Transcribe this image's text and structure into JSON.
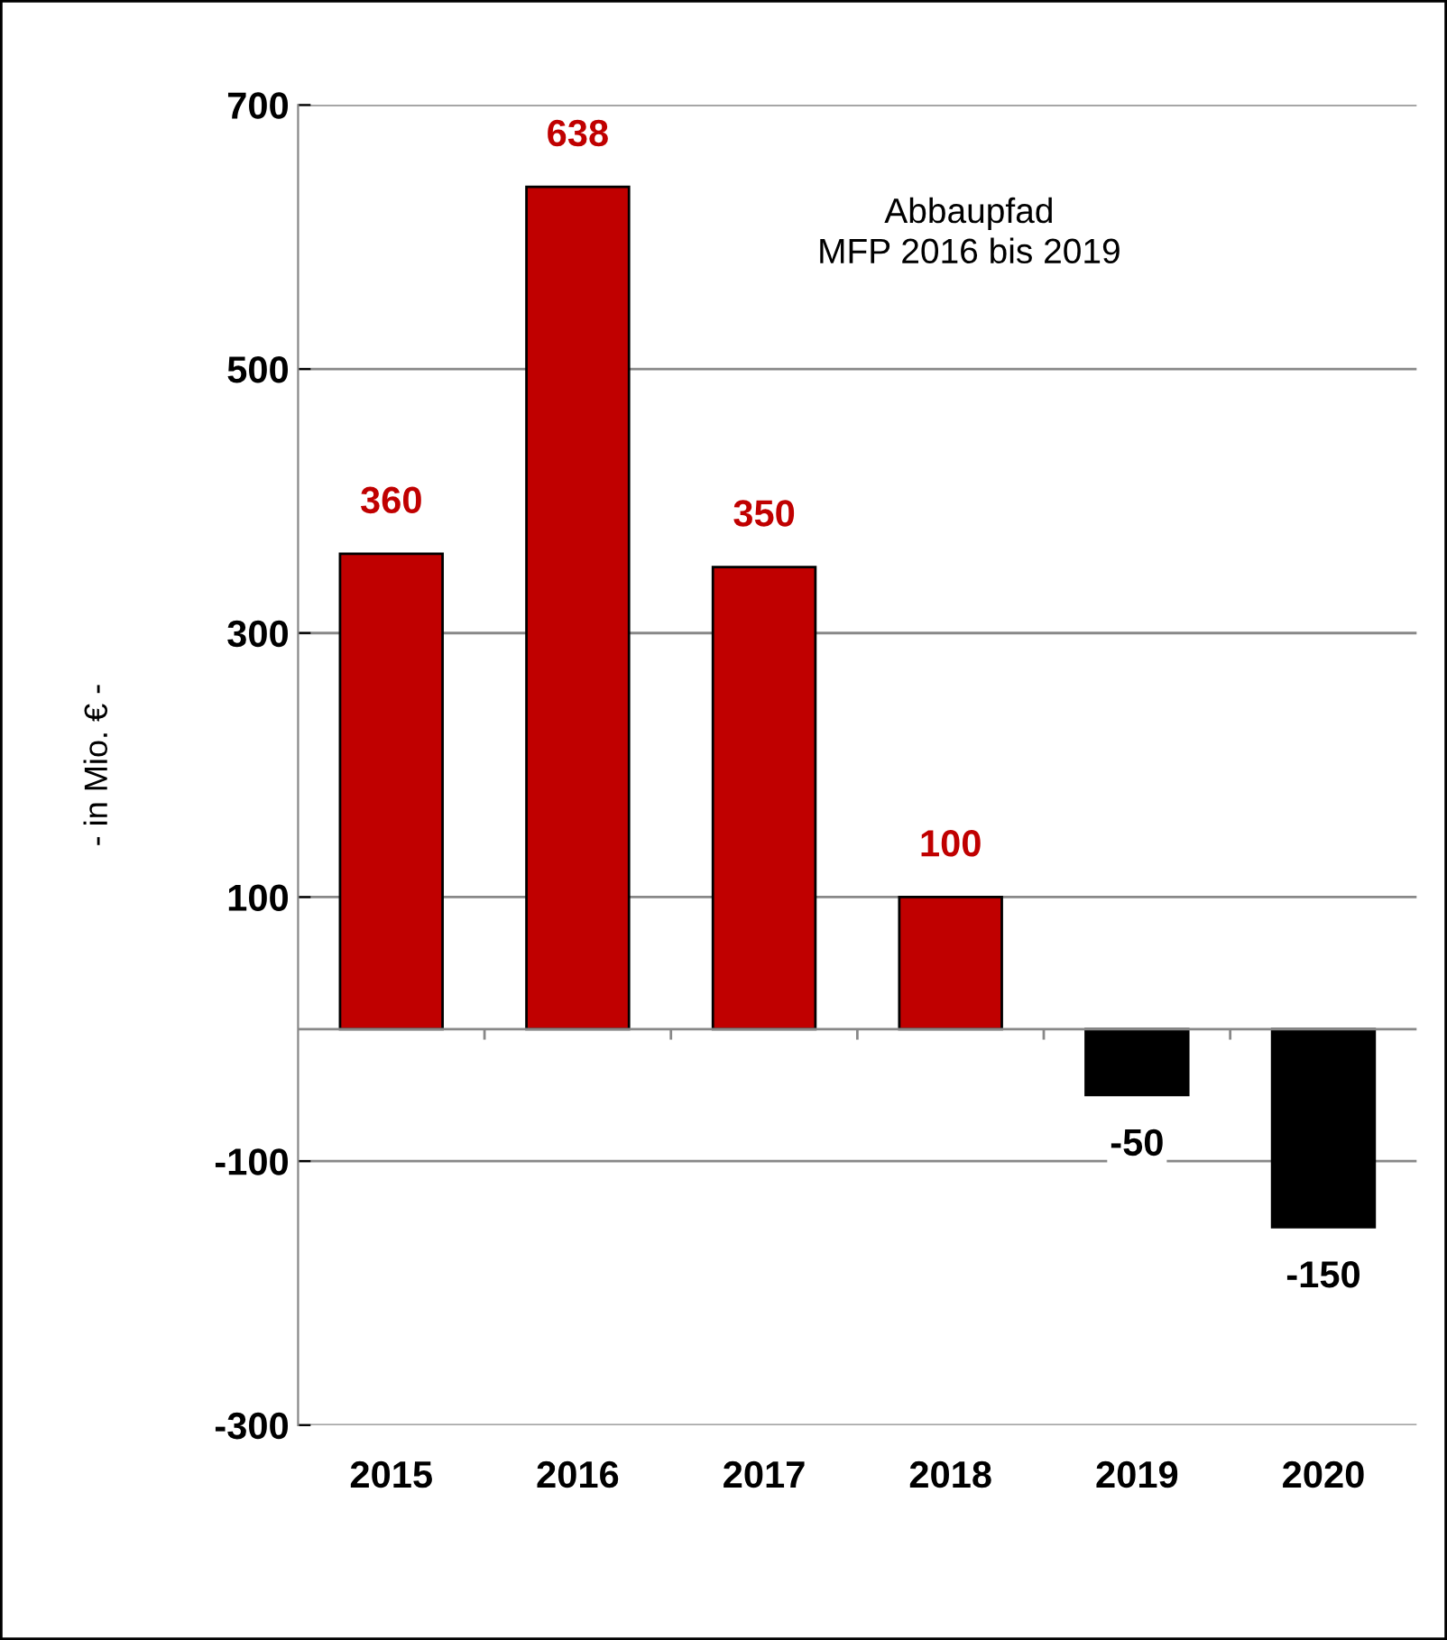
{
  "chart_data": {
    "type": "bar",
    "ylabel": "- in Mio. € -",
    "categories": [
      "2015",
      "2016",
      "2017",
      "2018",
      "2019",
      "2020"
    ],
    "values": [
      360,
      638,
      350,
      100,
      -50,
      -150
    ],
    "colors": [
      "#c00000",
      "#c00000",
      "#c00000",
      "#c00000",
      "#000000",
      "#000000"
    ],
    "data_labels": true,
    "ylim": [
      -300,
      700
    ],
    "yticks": [
      -300,
      -100,
      100,
      300,
      500,
      700
    ],
    "grid": "y",
    "annotations": [
      "Abbaupfad\nMFP 2016 bis 2019"
    ]
  }
}
